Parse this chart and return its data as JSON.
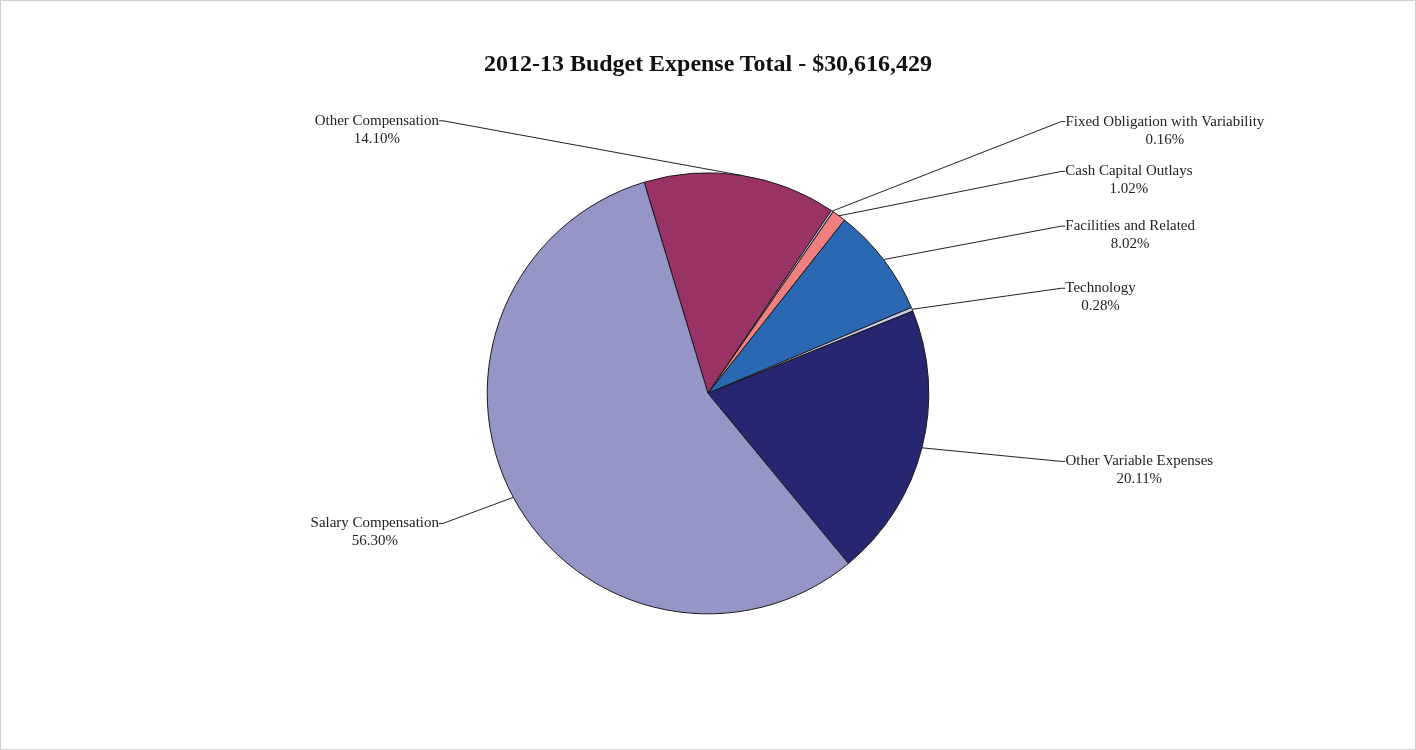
{
  "chart_data": {
    "type": "pie",
    "title": "2012-13 Budget Expense Total - $30,616,429",
    "categories": [
      "Other Compensation",
      "Fixed Obligation with Variability",
      "Cash Capital Outlays",
      "Facilities and Related",
      "Technology",
      "Other Variable Expenses",
      "Salary Compensation"
    ],
    "values": [
      14.1,
      0.16,
      1.02,
      8.02,
      0.28,
      20.11,
      56.3
    ],
    "value_labels": [
      "14.10%",
      "0.16%",
      "1.02%",
      "8.02%",
      "0.28%",
      "20.11%",
      "56.30%"
    ],
    "colors": [
      "#993366",
      "#c4c4ea",
      "#f07f80",
      "#2b68b3",
      "#c8c8e8",
      "#262671",
      "#9595c8"
    ],
    "legend": false
  }
}
